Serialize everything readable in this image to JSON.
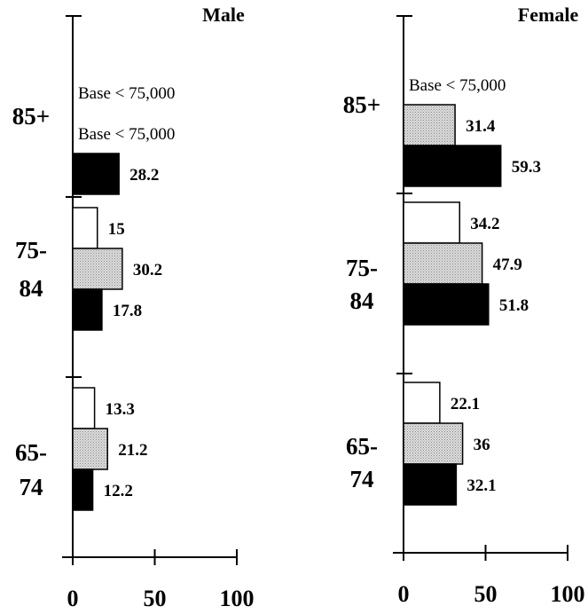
{
  "chart_data": [
    {
      "type": "bar",
      "orientation": "horizontal",
      "title": "Male",
      "categories": [
        "85+",
        "75-84",
        "65-74"
      ],
      "category_labels": [
        [
          "85+"
        ],
        [
          "75-",
          "84"
        ],
        [
          "65-",
          "74"
        ]
      ],
      "series": [
        {
          "color": "#ffffff",
          "values": [
            null,
            15,
            13.3
          ],
          "value_labels": [
            "Base < 75,000",
            "15",
            "13.3"
          ]
        },
        {
          "color": "#cfcfcf",
          "values": [
            null,
            30.2,
            21.2
          ],
          "value_labels": [
            "Base < 75,000",
            "30.2",
            "21.2"
          ]
        },
        {
          "color": "#000000",
          "values": [
            28.2,
            17.8,
            12.2
          ],
          "value_labels": [
            "28.2",
            "17.8",
            "12.2"
          ]
        }
      ],
      "xlim": [
        0,
        100
      ],
      "xticks": [
        0,
        50,
        100
      ],
      "xtick_labels": [
        "0",
        "50",
        "100"
      ]
    },
    {
      "type": "bar",
      "orientation": "horizontal",
      "title": "Female",
      "categories": [
        "85+",
        "75-84",
        "65-74"
      ],
      "category_labels": [
        [
          "85+"
        ],
        [
          "75-",
          "84"
        ],
        [
          "65-",
          "74"
        ]
      ],
      "series": [
        {
          "color": "#ffffff",
          "values": [
            null,
            34.2,
            22.1
          ],
          "value_labels": [
            "Base < 75,000",
            "34.2",
            "22.1"
          ]
        },
        {
          "color": "#cfcfcf",
          "values": [
            31.4,
            47.9,
            36
          ],
          "value_labels": [
            "31.4",
            "47.9",
            "36"
          ]
        },
        {
          "color": "#000000",
          "values": [
            59.3,
            51.8,
            32.1
          ],
          "value_labels": [
            "59.3",
            "51.8",
            "32.1"
          ]
        }
      ],
      "xlim": [
        0,
        100
      ],
      "xticks": [
        0,
        50,
        100
      ],
      "xtick_labels": [
        "0",
        "50",
        "100"
      ]
    }
  ]
}
